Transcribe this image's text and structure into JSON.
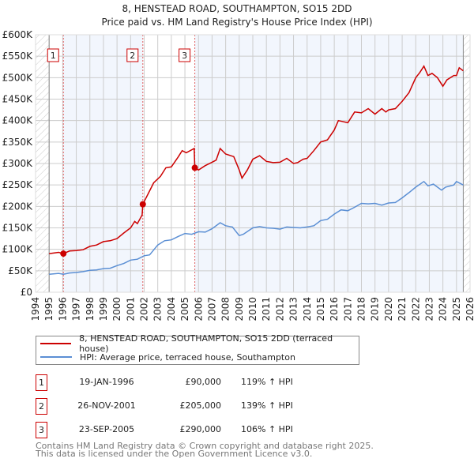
{
  "chart_data": {
    "type": "line",
    "title": "8, HENSTEAD ROAD, SOUTHAMPTON, SO15 2DD",
    "subtitle": "Price paid vs. HM Land Registry's House Price Index (HPI)",
    "xlim": [
      1994,
      2026
    ],
    "ylim": [
      0,
      600000
    ],
    "x_ticks": [
      "1994",
      "1995",
      "1996",
      "1997",
      "1998",
      "1999",
      "2000",
      "2001",
      "2002",
      "2003",
      "2004",
      "2005",
      "2006",
      "2007",
      "2008",
      "2009",
      "2010",
      "2011",
      "2012",
      "2013",
      "2014",
      "2015",
      "2016",
      "2017",
      "2018",
      "2019",
      "2020",
      "2021",
      "2022",
      "2023",
      "2024",
      "2025",
      "2026"
    ],
    "y_ticks": [
      {
        "v": 0,
        "label": "£0"
      },
      {
        "v": 50000,
        "label": "£50K"
      },
      {
        "v": 100000,
        "label": "£100K"
      },
      {
        "v": 150000,
        "label": "£150K"
      },
      {
        "v": 200000,
        "label": "£200K"
      },
      {
        "v": 250000,
        "label": "£250K"
      },
      {
        "v": 300000,
        "label": "£300K"
      },
      {
        "v": 350000,
        "label": "£350K"
      },
      {
        "v": 400000,
        "label": "£400K"
      },
      {
        "v": 450000,
        "label": "£450K"
      },
      {
        "v": 500000,
        "label": "£500K"
      },
      {
        "v": 550000,
        "label": "£550K"
      },
      {
        "v": 600000,
        "label": "£600K"
      }
    ],
    "grid": true,
    "series": [
      {
        "name": "8, HENSTEAD ROAD, SOUTHAMPTON, SO15 2DD (terraced house)",
        "color": "#cc0000",
        "x": [
          1995,
          1995.7,
          1996.05,
          1996.5,
          1997,
          1997.5,
          1998,
          1998.5,
          1999,
          1999.5,
          2000,
          2000.5,
          2001,
          2001.3,
          2001.5,
          2001.85,
          2001.9,
          2002.3,
          2002.7,
          2003.2,
          2003.6,
          2004,
          2004.5,
          2004.8,
          2005.1,
          2005.68,
          2005.73,
          2006,
          2006.5,
          2007,
          2007.3,
          2007.6,
          2008,
          2008.6,
          2009,
          2009.2,
          2009.6,
          2010,
          2010.5,
          2011,
          2011.5,
          2012,
          2012.5,
          2013,
          2013.3,
          2013.7,
          2014,
          2014.5,
          2015,
          2015.5,
          2016,
          2016.3,
          2016.6,
          2017,
          2017.5,
          2018,
          2018.5,
          2019,
          2019.5,
          2019.8,
          2020,
          2020.5,
          2021,
          2021.5,
          2022,
          2022.3,
          2022.6,
          2022.9,
          2023.2,
          2023.6,
          2024,
          2024.3,
          2024.8,
          2025,
          2025.2,
          2025.5
        ],
        "y": [
          90000,
          93000,
          90000,
          96000,
          97000,
          99000,
          107000,
          110000,
          118000,
          120000,
          125000,
          138000,
          150000,
          165000,
          160000,
          180000,
          205000,
          230000,
          255000,
          270000,
          290000,
          292000,
          315000,
          330000,
          325000,
          335000,
          290000,
          285000,
          295000,
          303000,
          308000,
          335000,
          322000,
          316000,
          285000,
          266000,
          285000,
          310000,
          318000,
          305000,
          302000,
          303000,
          312000,
          300000,
          302000,
          310000,
          312000,
          330000,
          350000,
          355000,
          378000,
          400000,
          398000,
          395000,
          420000,
          418000,
          428000,
          415000,
          428000,
          420000,
          425000,
          428000,
          445000,
          465000,
          500000,
          512000,
          527000,
          505000,
          510000,
          500000,
          480000,
          495000,
          505000,
          505000,
          523000,
          516000
        ]
      },
      {
        "name": "HPI: Average price, terraced house, Southampton",
        "color": "#5b8fd4",
        "x": [
          1995,
          1995.7,
          1996.05,
          1996.5,
          1997,
          1997.5,
          1998,
          1998.5,
          1999,
          1999.5,
          2000,
          2000.5,
          2001,
          2001.5,
          2002,
          2002.4,
          2003,
          2003.5,
          2004,
          2004.5,
          2005,
          2005.5,
          2006,
          2006.5,
          2007,
          2007.6,
          2008,
          2008.5,
          2009,
          2009.3,
          2010,
          2010.5,
          2011,
          2011.5,
          2012,
          2012.5,
          2013,
          2013.5,
          2014,
          2014.5,
          2015,
          2015.5,
          2016,
          2016.5,
          2017,
          2017.5,
          2018,
          2018.5,
          2019,
          2019.5,
          2020,
          2020.5,
          2021,
          2021.5,
          2022,
          2022.6,
          2022.9,
          2023.3,
          2023.9,
          2024.2,
          2024.8,
          2025,
          2025.5
        ],
        "y": [
          42000,
          44000,
          42000,
          45000,
          46000,
          48000,
          51000,
          52000,
          55000,
          56000,
          62000,
          67000,
          75000,
          77000,
          85000,
          87000,
          110000,
          120000,
          122000,
          130000,
          137000,
          135000,
          141000,
          140000,
          148000,
          162000,
          155000,
          152000,
          132000,
          135000,
          150000,
          153000,
          150000,
          149000,
          147000,
          152000,
          151000,
          150000,
          152000,
          155000,
          167000,
          170000,
          182000,
          192000,
          190000,
          198000,
          207000,
          206000,
          207000,
          203000,
          208000,
          209000,
          220000,
          232000,
          245000,
          258000,
          248000,
          252000,
          238000,
          245000,
          250000,
          258000,
          250000
        ]
      }
    ],
    "sales": [
      {
        "id": "1",
        "x": 1996.05,
        "y": 90000
      },
      {
        "id": "2",
        "x": 2001.9,
        "y": 205000
      },
      {
        "id": "3",
        "x": 2005.73,
        "y": 290000
      }
    ],
    "forecast_start": 2025.5
  },
  "legend": {
    "property_label": "8, HENSTEAD ROAD, SOUTHAMPTON, SO15 2DD (terraced house)",
    "hpi_label": "HPI: Average price, terraced house, Southampton"
  },
  "transactions": [
    {
      "num": "1",
      "date": "19-JAN-1996",
      "price": "£90,000",
      "hpi": "119% ↑ HPI"
    },
    {
      "num": "2",
      "date": "26-NOV-2001",
      "price": "£205,000",
      "hpi": "139% ↑ HPI"
    },
    {
      "num": "3",
      "date": "23-SEP-2005",
      "price": "£290,000",
      "hpi": "106% ↑ HPI"
    }
  ],
  "footer": {
    "line1": "Contains HM Land Registry data © Crown copyright and database right 2025.",
    "line2": "This data is licensed under the Open Government Licence v3.0."
  }
}
